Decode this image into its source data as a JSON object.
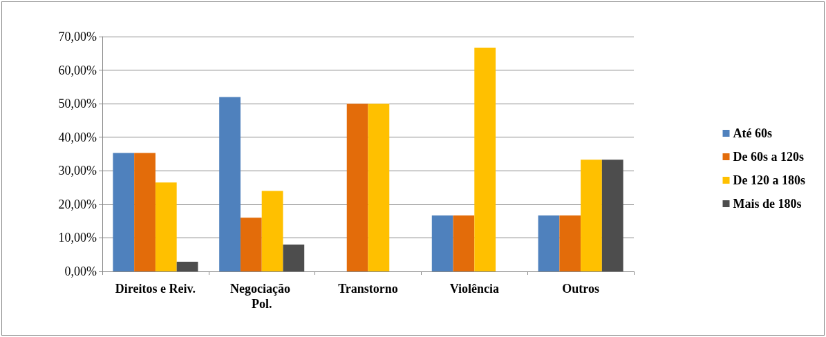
{
  "chart_data": {
    "type": "bar",
    "categories": [
      "Direitos e Reiv.",
      "Negociação Pol.",
      "Transtorno",
      "Violência",
      "Outros"
    ],
    "series": [
      {
        "name": "Até 60s",
        "color": "#4f81bd",
        "values": [
          35.3,
          52,
          0,
          16.7,
          16.7
        ]
      },
      {
        "name": "De 60s a 120s",
        "color": "#e36c0a",
        "values": [
          35.3,
          16,
          50,
          16.7,
          16.7
        ]
      },
      {
        "name": "De 120 a 180s",
        "color": "#ffc000",
        "values": [
          26.5,
          24,
          50,
          66.7,
          33.3
        ]
      },
      {
        "name": "Mais de 180s",
        "color": "#4d4d4d",
        "values": [
          2.9,
          8,
          0,
          0,
          33.3
        ]
      }
    ],
    "ylim": [
      0,
      70
    ],
    "yticks": [
      {
        "value": 0,
        "label": "0,00%"
      },
      {
        "value": 10,
        "label": "10,00%"
      },
      {
        "value": 20,
        "label": "20,00%"
      },
      {
        "value": 30,
        "label": "30,00%"
      },
      {
        "value": 40,
        "label": "40,00%"
      },
      {
        "value": 50,
        "label": "50,00%"
      },
      {
        "value": 60,
        "label": "60,00%"
      },
      {
        "value": 70,
        "label": "70,00%"
      }
    ],
    "grid": "y",
    "legend": "right"
  }
}
